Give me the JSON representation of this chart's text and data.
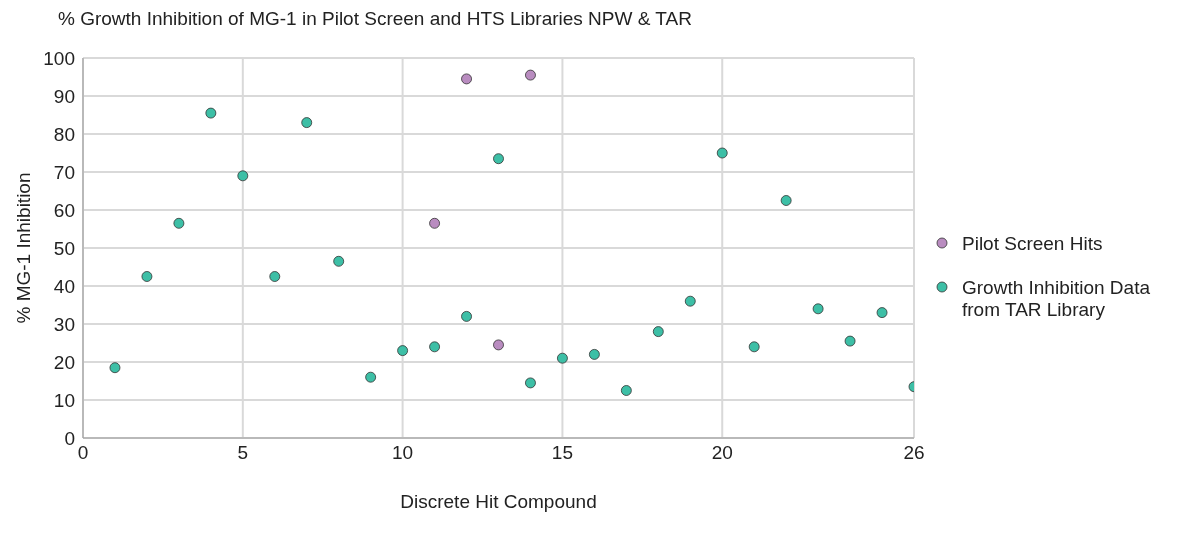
{
  "chart_data": {
    "type": "scatter",
    "title": "% Growth Inhibition of MG-1 in Pilot Screen and HTS Libraries NPW & TAR",
    "xlabel": "Discrete Hit Compound",
    "ylabel": "% MG-1 Inhibition",
    "xlim": [
      0,
      26
    ],
    "xticks": [
      0,
      5,
      10,
      15,
      20,
      26
    ],
    "ylim": [
      0,
      100
    ],
    "yticks": [
      0,
      10,
      20,
      30,
      40,
      50,
      60,
      70,
      80,
      90,
      100
    ],
    "grid": true,
    "legend": "right",
    "marker": "circle",
    "series": [
      {
        "name": "Pilot Screen Hits",
        "color": "#b98cc0",
        "x": [
          11,
          12,
          13,
          14
        ],
        "values": [
          56.5,
          94.5,
          24.5,
          95.5
        ]
      },
      {
        "name": "Growth Inhibition Data from TAR Library",
        "color": "#3dbfa6",
        "x": [
          1,
          2,
          3,
          4,
          5,
          6,
          7,
          8,
          9,
          10,
          11,
          12,
          13,
          14,
          15,
          16,
          17,
          18,
          19,
          20,
          21,
          22,
          23,
          24,
          25,
          26
        ],
        "values": [
          18.5,
          42.5,
          56.5,
          85.5,
          69,
          42.5,
          83,
          46.5,
          16,
          23,
          24,
          32,
          73.5,
          14.5,
          21,
          22,
          12.5,
          28,
          36,
          75,
          24,
          62.5,
          34,
          25.5,
          33,
          13.5
        ]
      }
    ]
  }
}
